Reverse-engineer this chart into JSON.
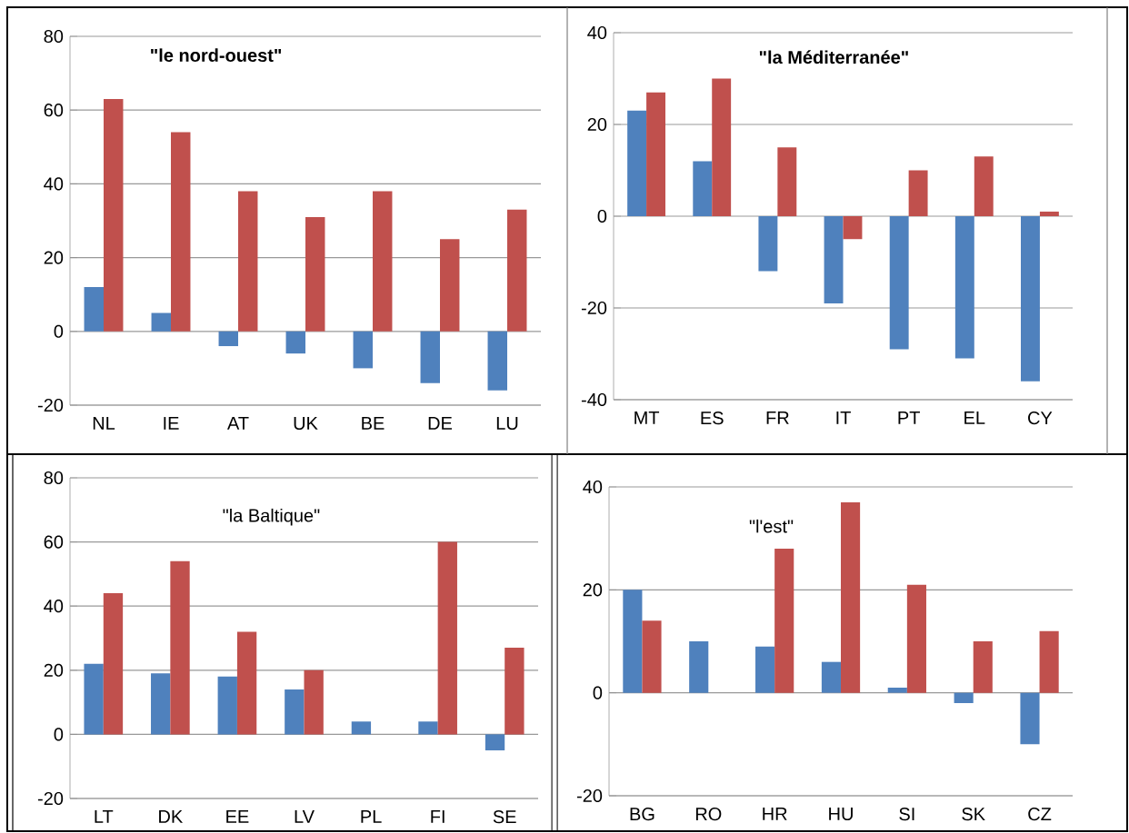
{
  "chart_data": [
    {
      "type": "bar",
      "title": "\"le nord-ouest\"",
      "categories": [
        "NL",
        "IE",
        "AT",
        "UK",
        "BE",
        "DE",
        "LU"
      ],
      "series": [
        {
          "color": "#4f81bd",
          "values": [
            12,
            5,
            -4,
            -6,
            -10,
            -14,
            -16
          ]
        },
        {
          "color": "#c0504d",
          "values": [
            63,
            54,
            38,
            31,
            38,
            25,
            33
          ]
        }
      ],
      "ylim": [
        -20,
        80
      ],
      "yticks": [
        -20,
        0,
        20,
        40,
        60,
        80
      ],
      "grid": "y"
    },
    {
      "type": "bar",
      "title": "\"la Méditerranée\"",
      "categories": [
        "MT",
        "ES",
        "FR",
        "IT",
        "PT",
        "EL",
        "CY"
      ],
      "series": [
        {
          "color": "#4f81bd",
          "values": [
            23,
            12,
            -12,
            -19,
            -29,
            -31,
            -36
          ]
        },
        {
          "color": "#c0504d",
          "values": [
            27,
            30,
            15,
            -5,
            10,
            13,
            1
          ]
        }
      ],
      "ylim": [
        -40,
        40
      ],
      "yticks": [
        -40,
        -20,
        0,
        20,
        40
      ],
      "grid": "y"
    },
    {
      "type": "bar",
      "title": "\"la Baltique\"",
      "categories": [
        "LT",
        "DK",
        "EE",
        "LV",
        "PL",
        "FI",
        "SE"
      ],
      "series": [
        {
          "color": "#4f81bd",
          "values": [
            22,
            19,
            18,
            14,
            4,
            4,
            -5
          ]
        },
        {
          "color": "#c0504d",
          "values": [
            44,
            54,
            32,
            20,
            0,
            60,
            27
          ]
        }
      ],
      "ylim": [
        -20,
        80
      ],
      "yticks": [
        -20,
        0,
        20,
        40,
        60,
        80
      ],
      "grid": "y"
    },
    {
      "type": "bar",
      "title": "\"l'est\"",
      "categories": [
        "BG",
        "RO",
        "HR",
        "HU",
        "SI",
        "SK",
        "CZ"
      ],
      "series": [
        {
          "color": "#4f81bd",
          "values": [
            20,
            10,
            9,
            6,
            1,
            -2,
            -10
          ]
        },
        {
          "color": "#c0504d",
          "values": [
            14,
            0,
            28,
            37,
            21,
            10,
            12
          ]
        }
      ],
      "ylim": [
        -20,
        40
      ],
      "yticks": [
        -20,
        0,
        20,
        40
      ],
      "grid": "y"
    }
  ]
}
